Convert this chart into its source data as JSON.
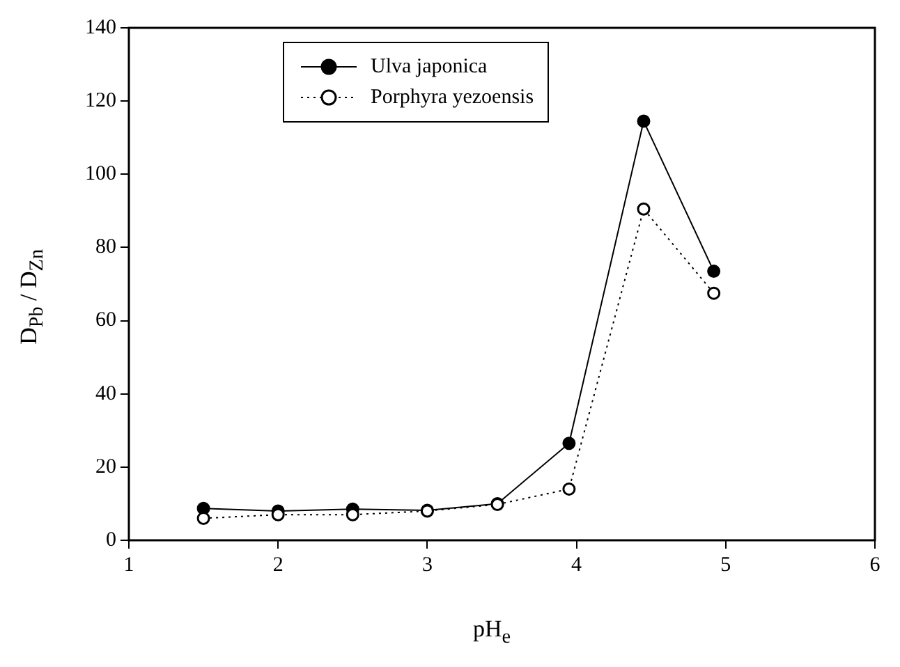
{
  "chart_data": {
    "type": "line",
    "xlabel": "pH$_{e}$",
    "ylabel": "D$_{Pb}$ / D$_{Zn}$",
    "x": [
      1.5,
      2,
      2.5,
      3,
      3.47,
      3.95,
      4.45,
      4.92
    ],
    "series": [
      {
        "name": "Ulva japonica",
        "color": "#000000",
        "values": [
          8.7,
          8,
          8.5,
          8.2,
          10,
          26.5,
          114.5,
          73.5
        ],
        "marker": "circle",
        "line_style": "solid"
      },
      {
        "name": "Porphyra yezoensis",
        "color": "#000000",
        "values": [
          6,
          7,
          7,
          8,
          9.8,
          14,
          90.5,
          67.5
        ],
        "marker": "open circle",
        "line_style": "dotted"
      }
    ],
    "xlim": [
      1,
      6
    ],
    "xticks": [
      1,
      2,
      3,
      4,
      5,
      6
    ],
    "ylim": [
      0,
      140
    ],
    "yticks": [
      0,
      20,
      40,
      60,
      80,
      100,
      120,
      140
    ],
    "grid": false,
    "legend": "top left"
  }
}
